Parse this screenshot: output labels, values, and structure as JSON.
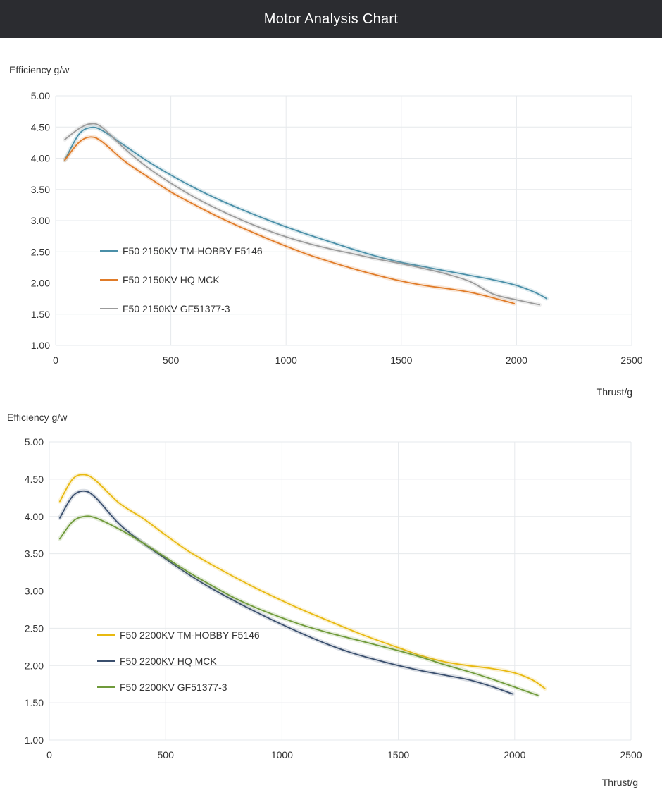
{
  "header": {
    "title": "Motor Analysis Chart"
  },
  "chart_data": [
    {
      "type": "line",
      "ylabel": "Efficiency g/w",
      "xlabel": "Thrust/g",
      "xlim": [
        0,
        2500
      ],
      "ylim": [
        1.0,
        5.0
      ],
      "x_ticks": [
        0,
        500,
        1000,
        1500,
        2000,
        2500
      ],
      "y_ticks": [
        1.0,
        1.5,
        2.0,
        2.5,
        3.0,
        3.5,
        4.0,
        4.5,
        5.0
      ],
      "y_tick_labels": [
        "1.00",
        "1.50",
        "2.00",
        "2.50",
        "3.00",
        "3.50",
        "4.00",
        "4.50",
        "5.00"
      ],
      "x_tick_labels": [
        "0",
        "500",
        "1000",
        "1500",
        "2000",
        "2500"
      ],
      "grid": true,
      "legend_position": "center-left",
      "series": [
        {
          "name": "F50 2150KV TM-HOBBY F5146",
          "color": "#4a8fa8",
          "x": [
            40,
            100,
            150,
            200,
            300,
            400,
            500,
            600,
            700,
            800,
            900,
            1000,
            1100,
            1200,
            1300,
            1400,
            1500,
            1600,
            1700,
            1800,
            1900,
            2000,
            2080,
            2130
          ],
          "y": [
            3.97,
            4.38,
            4.49,
            4.45,
            4.2,
            3.95,
            3.73,
            3.53,
            3.35,
            3.19,
            3.04,
            2.9,
            2.77,
            2.65,
            2.53,
            2.42,
            2.33,
            2.26,
            2.19,
            2.12,
            2.05,
            1.96,
            1.85,
            1.75
          ]
        },
        {
          "name": "F50 2150KV HQ MCK",
          "color": "#e07b28",
          "x": [
            40,
            100,
            150,
            200,
            300,
            400,
            500,
            600,
            700,
            800,
            900,
            1000,
            1100,
            1200,
            1300,
            1400,
            1500,
            1600,
            1700,
            1800,
            1900,
            1990
          ],
          "y": [
            3.97,
            4.25,
            4.34,
            4.27,
            3.95,
            3.7,
            3.46,
            3.26,
            3.07,
            2.9,
            2.74,
            2.59,
            2.45,
            2.33,
            2.22,
            2.12,
            2.03,
            1.96,
            1.91,
            1.85,
            1.76,
            1.67
          ]
        },
        {
          "name": "F50 2150KV GF51377-3",
          "color": "#9b9b9b",
          "x": [
            40,
            100,
            150,
            200,
            300,
            400,
            500,
            600,
            700,
            800,
            900,
            1000,
            1100,
            1200,
            1300,
            1400,
            1500,
            1600,
            1700,
            1800,
            1900,
            2000,
            2100
          ],
          "y": [
            4.3,
            4.47,
            4.55,
            4.5,
            4.15,
            3.85,
            3.6,
            3.38,
            3.19,
            3.02,
            2.87,
            2.74,
            2.63,
            2.54,
            2.46,
            2.38,
            2.31,
            2.23,
            2.14,
            2.02,
            1.82,
            1.73,
            1.65
          ]
        }
      ]
    },
    {
      "type": "line",
      "ylabel": "Efficiency g/w",
      "xlabel": "Thrust/g",
      "xlim": [
        0,
        2500
      ],
      "ylim": [
        1.0,
        5.0
      ],
      "x_ticks": [
        0,
        500,
        1000,
        1500,
        2000,
        2500
      ],
      "y_ticks": [
        1.0,
        1.5,
        2.0,
        2.5,
        3.0,
        3.5,
        4.0,
        4.5,
        5.0
      ],
      "y_tick_labels": [
        "1.00",
        "1.50",
        "2.00",
        "2.50",
        "3.00",
        "3.50",
        "4.00",
        "4.50",
        "5.00"
      ],
      "x_tick_labels": [
        "0",
        "500",
        "1000",
        "1500",
        "2000",
        "2500"
      ],
      "grid": true,
      "legend_position": "center-left",
      "series": [
        {
          "name": "F50 2200KV TM-HOBBY F5146",
          "color": "#e8b910",
          "x": [
            45,
            100,
            150,
            200,
            300,
            400,
            500,
            600,
            700,
            800,
            900,
            1000,
            1100,
            1200,
            1300,
            1400,
            1500,
            1600,
            1700,
            1800,
            1900,
            2000,
            2080,
            2130
          ],
          "y": [
            4.2,
            4.5,
            4.56,
            4.48,
            4.18,
            3.98,
            3.75,
            3.53,
            3.35,
            3.18,
            3.02,
            2.87,
            2.73,
            2.6,
            2.47,
            2.35,
            2.24,
            2.13,
            2.05,
            2.0,
            1.96,
            1.9,
            1.8,
            1.69
          ]
        },
        {
          "name": "F50 2200KV HQ MCK",
          "color": "#3a4f6e",
          "x": [
            45,
            100,
            150,
            200,
            300,
            400,
            500,
            600,
            700,
            800,
            900,
            1000,
            1100,
            1200,
            1300,
            1400,
            1500,
            1600,
            1700,
            1800,
            1900,
            1990
          ],
          "y": [
            3.98,
            4.27,
            4.34,
            4.25,
            3.9,
            3.65,
            3.43,
            3.22,
            3.03,
            2.86,
            2.7,
            2.55,
            2.41,
            2.28,
            2.17,
            2.08,
            2.0,
            1.93,
            1.87,
            1.81,
            1.72,
            1.62
          ]
        },
        {
          "name": "F50 2200KV GF51377-3",
          "color": "#6f9a3a",
          "x": [
            45,
            100,
            150,
            200,
            300,
            400,
            500,
            600,
            700,
            800,
            900,
            1000,
            1100,
            1200,
            1300,
            1400,
            1500,
            1600,
            1700,
            1800,
            1900,
            2000,
            2100
          ],
          "y": [
            3.7,
            3.93,
            4.0,
            3.98,
            3.83,
            3.65,
            3.45,
            3.25,
            3.07,
            2.9,
            2.76,
            2.64,
            2.53,
            2.44,
            2.36,
            2.28,
            2.2,
            2.11,
            2.01,
            1.92,
            1.82,
            1.71,
            1.6
          ]
        }
      ]
    }
  ]
}
